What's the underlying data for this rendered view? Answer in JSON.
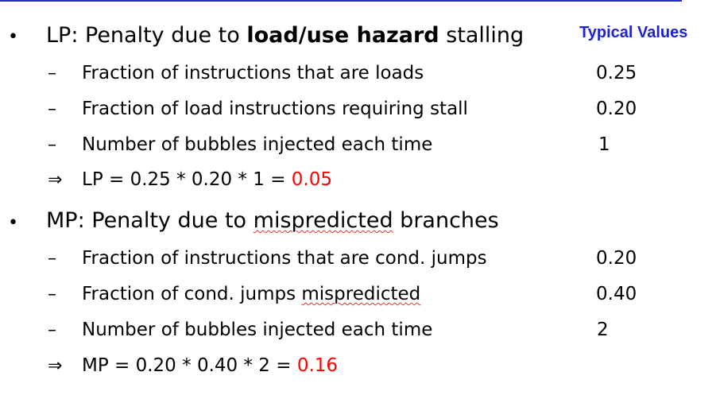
{
  "header": {
    "typical_values": "Typical Values"
  },
  "lp": {
    "bullet": "•",
    "prefix": "LP: Penalty due to ",
    "highlight": "load/use hazard",
    "suffix": " stalling",
    "items": [
      {
        "dash": "–",
        "text": "Fraction of instructions that are loads",
        "value": "0.25"
      },
      {
        "dash": "–",
        "text": "Fraction of load instructions requiring stall",
        "value": "0.20"
      },
      {
        "dash": "–",
        "text": "Number of bubbles injected each time",
        "value": "1"
      }
    ],
    "implies": "⇒",
    "result_expr": "LP = 0.25 * 0.20 * 1 = ",
    "result_value": "0.05"
  },
  "mp": {
    "bullet": "•",
    "prefix": "MP: Penalty due to ",
    "highlight": "mispredicted",
    "suffix": " branches",
    "items": [
      {
        "dash": "–",
        "text": "Fraction of instructions that are cond. jumps",
        "value": "0.20"
      },
      {
        "dash": "–",
        "text_prefix": "Fraction of cond. jumps ",
        "text_highlight": "mispredicted",
        "value": "0.40"
      },
      {
        "dash": "–",
        "text": "Number of bubbles injected each time",
        "value": "2"
      }
    ],
    "implies": "⇒",
    "result_expr": "MP = 0.20 * 0.40 * 2 = ",
    "result_value": "0.16"
  },
  "colors": {
    "accent_blue": "#1e22d6",
    "result_red": "#ff0000",
    "rule_blue": "#2a2ad0"
  }
}
